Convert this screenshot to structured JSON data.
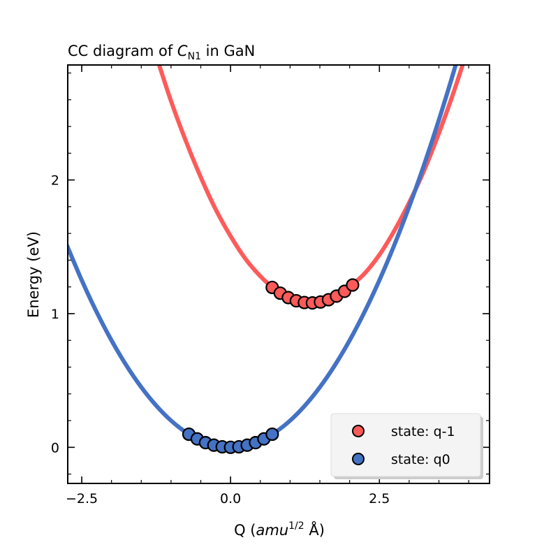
{
  "chart_data": {
    "type": "scatter",
    "title": "CC diagram of C_N1 in GaN",
    "title_parts": {
      "pre": "CC diagram of ",
      "italic": "C",
      "sub": "N1",
      "post": " in GaN"
    },
    "xlabel": "Q (amu^1/2 Å)",
    "xlabel_parts": {
      "pre": "Q (",
      "italic": "amu",
      "sup": "1/2",
      "post": " Å)"
    },
    "ylabel": "Energy (eV)",
    "xlim": [
      -2.735,
      4.35
    ],
    "ylim": [
      -0.27,
      2.86
    ],
    "xticks": [
      -2.5,
      0.0,
      2.5
    ],
    "xtick_labels": [
      "−2.5",
      "0.0",
      "2.5"
    ],
    "yticks": [
      0,
      1,
      2
    ],
    "ytick_labels": [
      "0",
      "1",
      "2"
    ],
    "grid": false,
    "legend_placement": "lower-right",
    "series": [
      {
        "name": "state: q-1",
        "color": "#ff5a5a",
        "points": {
          "x": [
            0.7,
            0.835,
            0.97,
            1.105,
            1.24,
            1.375,
            1.51,
            1.645,
            1.78,
            1.915,
            2.05
          ],
          "y": [
            1.196,
            1.153,
            1.12,
            1.096,
            1.083,
            1.08,
            1.087,
            1.104,
            1.131,
            1.167,
            1.214
          ]
        },
        "curve": {
          "x": [
            -1.25,
            -1,
            -0.75,
            -0.5,
            -0.25,
            0,
            0.25,
            0.5,
            0.75,
            1,
            1.25,
            1.5,
            1.75,
            2,
            2.25,
            2.5,
            2.75,
            3,
            3.25,
            3.5,
            3.75,
            4
          ],
          "y": [
            2.93,
            2.59,
            2.29,
            2.02,
            1.78,
            1.58,
            1.41,
            1.28,
            1.18,
            1.11,
            1.08,
            1.09,
            1.12,
            1.2,
            1.3,
            1.44,
            1.62,
            1.83,
            2.07,
            2.35,
            2.66,
            3.0
          ]
        }
      },
      {
        "name": "state: q0",
        "color": "#4472c4",
        "points": {
          "x": [
            -0.7,
            -0.56,
            -0.42,
            -0.28,
            -0.14,
            0,
            0.14,
            0.28,
            0.42,
            0.56,
            0.7
          ],
          "y": [
            0.098,
            0.063,
            0.035,
            0.016,
            0.004,
            0,
            0.004,
            0.016,
            0.035,
            0.063,
            0.098
          ]
        },
        "curve": {
          "x": [
            -2.75,
            -2.5,
            -2.25,
            -2,
            -1.75,
            -1.5,
            -1.25,
            -1,
            -0.75,
            -0.5,
            -0.25,
            0,
            0.25,
            0.5,
            0.75,
            1,
            1.25,
            1.5,
            1.75,
            2,
            2.25,
            2.5,
            2.75,
            3,
            3.25,
            3.5,
            3.75,
            4
          ],
          "y": [
            1.5125,
            1.25,
            1.0125,
            0.8,
            0.6125,
            0.45,
            0.3125,
            0.2,
            0.1125,
            0.05,
            0.0125,
            0,
            0.0125,
            0.05,
            0.1125,
            0.2,
            0.3125,
            0.45,
            0.6125,
            0.8,
            1.0125,
            1.25,
            1.5125,
            1.8,
            2.1125,
            2.45,
            2.8125,
            3.2
          ]
        }
      }
    ]
  }
}
